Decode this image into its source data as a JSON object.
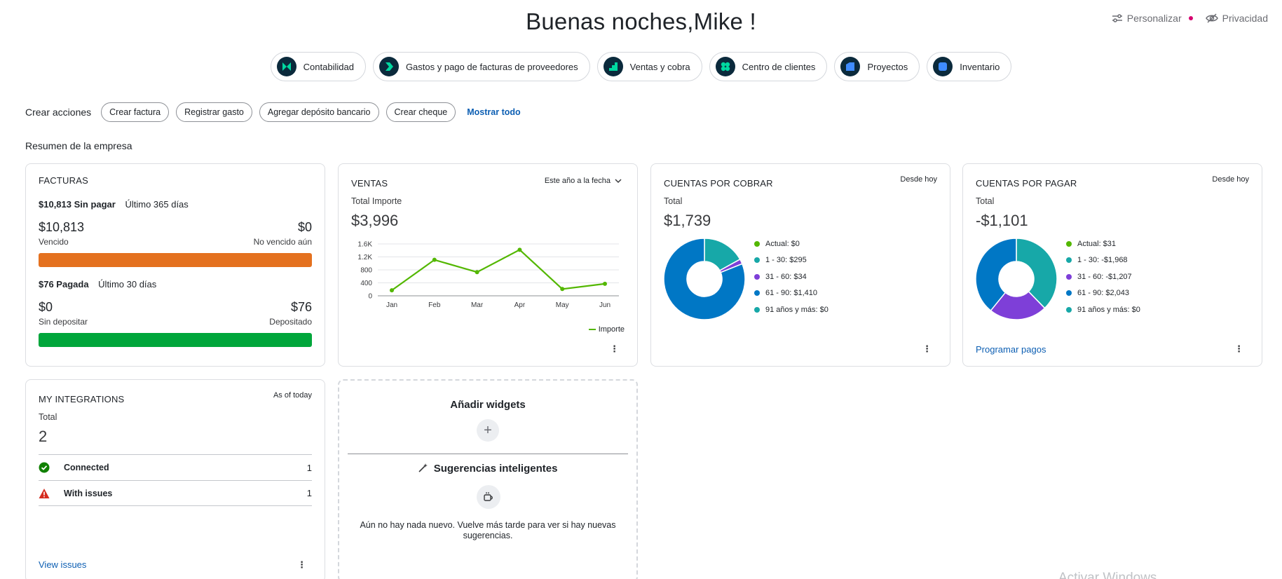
{
  "header": {
    "greeting": "Buenas noches,Mike !",
    "personalize": "Personalizar",
    "privacy": "Privacidad"
  },
  "apps": [
    {
      "label": "Contabilidad",
      "icon": "bowtie-icon",
      "color": "#00d8a0"
    },
    {
      "label": "Gastos y pago de facturas de proveedores",
      "icon": "chevron-right-icon",
      "color": "#00d8a0"
    },
    {
      "label": "Ventas y cobra",
      "icon": "stairs-icon",
      "color": "#00d8a0"
    },
    {
      "label": "Centro de clientes",
      "icon": "clover-icon",
      "color": "#00d8a0"
    },
    {
      "label": "Proyectos",
      "icon": "folder-icon",
      "color": "#3f8cff"
    },
    {
      "label": "Inventario",
      "icon": "box-icon",
      "color": "#3f8cff"
    }
  ],
  "actions": {
    "label": "Crear acciones",
    "items": [
      "Crear factura",
      "Registrar gasto",
      "Agregar depósito bancario",
      "Crear cheque"
    ],
    "show_all": "Mostrar todo"
  },
  "summary_title": "Resumen de la empresa",
  "invoices": {
    "title": "FACTURAS",
    "unpaid_amount": "$10,813 Sin pagar",
    "unpaid_period": "Último 365 días",
    "overdue_value": "$10,813",
    "overdue_label": "Vencido",
    "notdue_value": "$0",
    "notdue_label": "No vencido aún",
    "paid_amount": "$76 Pagada",
    "paid_period": "Último 30 días",
    "undeposited_value": "$0",
    "undeposited_label": "Sin depositar",
    "deposited_value": "$76",
    "deposited_label": "Depositado",
    "overdue_color": "#e4711f",
    "deposited_color": "#00a63b"
  },
  "sales": {
    "title": "VENTAS",
    "period": "Este año a la fecha",
    "total_label": "Total Importe",
    "total_value": "$3,996",
    "legend": "Importe"
  },
  "receivables": {
    "title": "CUENTAS POR COBRAR",
    "note": "Desde hoy",
    "total_label": "Total",
    "total_value": "$1,739",
    "legend": [
      {
        "label": "Actual: $0",
        "color": "#53b700"
      },
      {
        "label": "1 - 30: $295",
        "color": "#17a8a8"
      },
      {
        "label": "31 - 60: $34",
        "color": "#7e3fd8"
      },
      {
        "label": "61 - 90: $1,410",
        "color": "#0077c5"
      },
      {
        "label": "91 años y más: $0",
        "color": "#17a8a8"
      }
    ]
  },
  "payables": {
    "title": "CUENTAS POR PAGAR",
    "note": "Desde hoy",
    "total_label": "Total",
    "total_value": "-$1,101",
    "legend": [
      {
        "label": "Actual: $31",
        "color": "#53b700"
      },
      {
        "label": "1 - 30: -$1,968",
        "color": "#17a8a8"
      },
      {
        "label": "31 - 60: -$1,207",
        "color": "#7e3fd8"
      },
      {
        "label": "61 - 90: $2,043",
        "color": "#0077c5"
      },
      {
        "label": "91 años y más: $0",
        "color": "#17a8a8"
      }
    ],
    "link": "Programar pagos"
  },
  "integrations": {
    "title": "MY INTEGRATIONS",
    "note": "As of today",
    "total_label": "Total",
    "total_value": "2",
    "rows": [
      {
        "label": "Connected",
        "count": "1"
      },
      {
        "label": "With issues",
        "count": "1"
      }
    ],
    "link": "View issues"
  },
  "widgets": {
    "add_title": "Añadir widgets",
    "suggest_title": "Sugerencias inteligentes",
    "suggest_text": "Aún no hay nada nuevo. Vuelve más tarde para ver si hay nuevas sugerencias."
  },
  "watermark": "Activar Windows",
  "chart_data": [
    {
      "type": "line",
      "title": "VENTAS",
      "categories": [
        "Jan",
        "Feb",
        "Mar",
        "Apr",
        "May",
        "Jun"
      ],
      "series": [
        {
          "name": "Importe",
          "values": [
            170,
            1110,
            730,
            1420,
            210,
            370
          ],
          "color": "#53b700"
        }
      ],
      "y_ticks": [
        "1.6K",
        "1.2K",
        "800",
        "400",
        "0"
      ],
      "ylim": [
        0,
        1600
      ],
      "grid": true,
      "legend": "bottom-right"
    },
    {
      "type": "pie",
      "title": "CUENTAS POR COBRAR",
      "labels": [
        "1 - 30",
        "31 - 60",
        "61 - 90"
      ],
      "values": [
        295,
        34,
        1410
      ],
      "colors": [
        "#17a8a8",
        "#7e3fd8",
        "#0077c5"
      ]
    },
    {
      "type": "pie",
      "title": "CUENTAS POR PAGAR",
      "labels": [
        "1 - 30",
        "31 - 60",
        "61 - 90"
      ],
      "values": [
        1968,
        1207,
        2043
      ],
      "colors": [
        "#17a8a8",
        "#7e3fd8",
        "#0077c5"
      ]
    }
  ]
}
